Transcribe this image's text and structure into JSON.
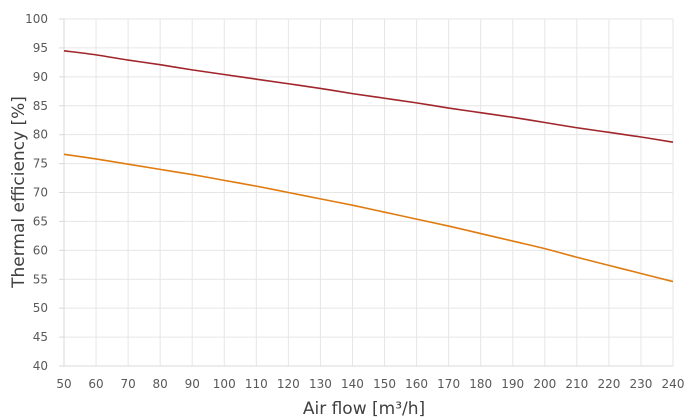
{
  "chart_data": {
    "type": "line",
    "xlabel": "Air flow [m³/h]",
    "ylabel": "Thermal efficiency [%]",
    "xlim": [
      50,
      240
    ],
    "ylim": [
      40,
      100
    ],
    "x_ticks": [
      50,
      60,
      70,
      80,
      90,
      100,
      110,
      120,
      130,
      140,
      150,
      160,
      170,
      180,
      190,
      200,
      210,
      220,
      230,
      240
    ],
    "y_ticks": [
      40,
      45,
      50,
      55,
      60,
      65,
      70,
      75,
      80,
      85,
      90,
      95,
      100
    ],
    "grid": true,
    "legend": false,
    "series": [
      {
        "color": "#a0262b",
        "x": [
          50,
          60,
          70,
          80,
          90,
          100,
          110,
          120,
          130,
          140,
          150,
          160,
          170,
          180,
          190,
          200,
          210,
          220,
          230,
          240
        ],
        "values": [
          94.5,
          93.8,
          92.9,
          92.1,
          91.2,
          90.4,
          89.6,
          88.8,
          88.0,
          87.1,
          86.3,
          85.5,
          84.6,
          83.8,
          83.0,
          82.1,
          81.2,
          80.4,
          79.6,
          78.7
        ]
      },
      {
        "color": "#e07b10",
        "x": [
          50,
          60,
          70,
          80,
          90,
          100,
          110,
          120,
          130,
          140,
          150,
          160,
          170,
          180,
          190,
          200,
          210,
          220,
          230,
          240
        ],
        "values": [
          76.6,
          75.8,
          74.9,
          74.0,
          73.1,
          72.1,
          71.1,
          70.0,
          68.9,
          67.8,
          66.6,
          65.4,
          64.2,
          62.9,
          61.6,
          60.3,
          58.8,
          57.4,
          56.0,
          54.6
        ]
      }
    ]
  }
}
